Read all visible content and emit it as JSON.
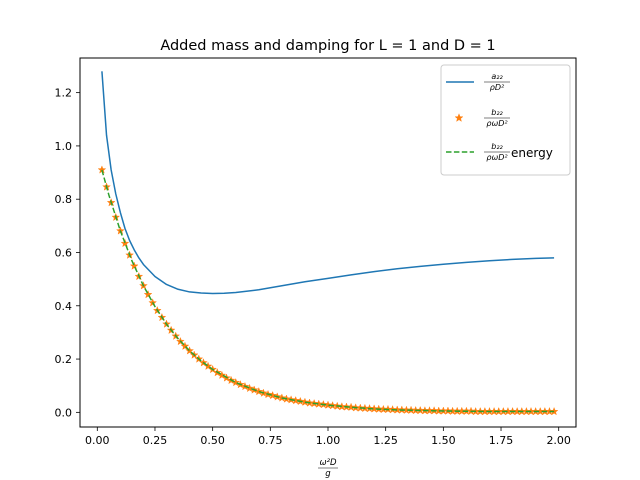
{
  "chart_data": {
    "type": "line",
    "title": "Added mass and damping for L = 1 and D = 1",
    "xlabel": {
      "num": "ω²D",
      "den": "g"
    },
    "ylabel": "",
    "xlim": [
      -0.075,
      2.075
    ],
    "ylim": [
      -0.055,
      1.33
    ],
    "grid": false,
    "legend_position": "top-right",
    "x_ticks": [
      0.0,
      0.25,
      0.5,
      0.75,
      1.0,
      1.25,
      1.5,
      1.75,
      2.0
    ],
    "x_tick_labels": [
      "0.00",
      "0.25",
      "0.50",
      "0.75",
      "1.00",
      "1.25",
      "1.50",
      "1.75",
      "2.00"
    ],
    "y_ticks": [
      0.0,
      0.2,
      0.4,
      0.6,
      0.8,
      1.0,
      1.2
    ],
    "y_tick_labels": [
      "0.0",
      "0.2",
      "0.4",
      "0.6",
      "0.8",
      "1.0",
      "1.2"
    ],
    "series": [
      {
        "name": "a22 / ρD²",
        "legend": {
          "num": "a₂₂",
          "den": "ρD²",
          "suffix": ""
        },
        "style": "solid",
        "color": "#1f77b4",
        "x": [
          0.02,
          0.04,
          0.06,
          0.08,
          0.1,
          0.12,
          0.14,
          0.16,
          0.18,
          0.2,
          0.25,
          0.3,
          0.35,
          0.4,
          0.45,
          0.5,
          0.55,
          0.6,
          0.7,
          0.8,
          0.9,
          1.0,
          1.1,
          1.2,
          1.3,
          1.4,
          1.5,
          1.6,
          1.7,
          1.8,
          1.9,
          1.98
        ],
        "y": [
          1.28,
          1.04,
          0.91,
          0.82,
          0.75,
          0.69,
          0.645,
          0.61,
          0.58,
          0.555,
          0.51,
          0.48,
          0.462,
          0.452,
          0.448,
          0.446,
          0.447,
          0.45,
          0.46,
          0.475,
          0.49,
          0.503,
          0.516,
          0.528,
          0.539,
          0.548,
          0.556,
          0.563,
          0.569,
          0.574,
          0.578,
          0.58
        ]
      },
      {
        "name": "b22 / ρωD²",
        "legend": {
          "num": "b₂₂",
          "den": "ρωD²",
          "suffix": ""
        },
        "style": "star-markers",
        "color": "#ff7f0e",
        "x": [
          0.02,
          0.04,
          0.06,
          0.08,
          0.1,
          0.12,
          0.14,
          0.16,
          0.18,
          0.2,
          0.22,
          0.24,
          0.26,
          0.28,
          0.3,
          0.32,
          0.34,
          0.36,
          0.38,
          0.4,
          0.42,
          0.44,
          0.46,
          0.48,
          0.5,
          0.52,
          0.54,
          0.56,
          0.58,
          0.6,
          0.62,
          0.64,
          0.66,
          0.68,
          0.7,
          0.72,
          0.74,
          0.76,
          0.78,
          0.8,
          0.82,
          0.84,
          0.86,
          0.88,
          0.9,
          0.92,
          0.94,
          0.96,
          0.98,
          1.0,
          1.02,
          1.04,
          1.06,
          1.08,
          1.1,
          1.12,
          1.14,
          1.16,
          1.18,
          1.2,
          1.22,
          1.24,
          1.26,
          1.28,
          1.3,
          1.32,
          1.34,
          1.36,
          1.38,
          1.4,
          1.42,
          1.44,
          1.46,
          1.48,
          1.5,
          1.52,
          1.54,
          1.56,
          1.58,
          1.6,
          1.62,
          1.64,
          1.66,
          1.68,
          1.7,
          1.72,
          1.74,
          1.76,
          1.78,
          1.8,
          1.82,
          1.84,
          1.86,
          1.88,
          1.9,
          1.92,
          1.94,
          1.96,
          1.98
        ],
        "y": [
          0.91,
          0.846,
          0.787,
          0.732,
          0.681,
          0.634,
          0.59,
          0.549,
          0.51,
          0.475,
          0.442,
          0.411,
          0.382,
          0.356,
          0.331,
          0.308,
          0.286,
          0.266,
          0.248,
          0.231,
          0.215,
          0.2,
          0.186,
          0.173,
          0.161,
          0.149,
          0.139,
          0.129,
          0.12,
          0.112,
          0.104,
          0.097,
          0.09,
          0.084,
          0.078,
          0.072,
          0.067,
          0.063,
          0.058,
          0.054,
          0.05,
          0.047,
          0.044,
          0.041,
          0.038,
          0.035,
          0.033,
          0.031,
          0.029,
          0.027,
          0.025,
          0.023,
          0.021,
          0.02,
          0.019,
          0.017,
          0.016,
          0.015,
          0.014,
          0.013,
          0.012,
          0.011,
          0.011,
          0.01,
          0.009,
          0.009,
          0.008,
          0.008,
          0.007,
          0.007,
          0.006,
          0.006,
          0.006,
          0.005,
          0.005,
          0.005,
          0.004,
          0.004,
          0.004,
          0.004,
          0.004,
          0.003,
          0.003,
          0.003,
          0.003,
          0.003,
          0.003,
          0.003,
          0.003,
          0.003,
          0.003,
          0.003,
          0.003,
          0.003,
          0.003,
          0.003,
          0.003,
          0.003,
          0.003
        ]
      },
      {
        "name": "b22 / ρωD² energy",
        "legend": {
          "num": "b₂₂",
          "den": "ρωD²",
          "suffix": "energy"
        },
        "style": "dashed",
        "color": "#2ca02c",
        "x": [
          0.02,
          0.05,
          0.1,
          0.15,
          0.2,
          0.25,
          0.3,
          0.35,
          0.4,
          0.45,
          0.5,
          0.6,
          0.7,
          0.8,
          0.9,
          1.0,
          1.1,
          1.2,
          1.3,
          1.4,
          1.5,
          1.6,
          1.7,
          1.8,
          1.9,
          1.98
        ],
        "y": [
          0.91,
          0.816,
          0.681,
          0.569,
          0.475,
          0.397,
          0.331,
          0.277,
          0.231,
          0.193,
          0.161,
          0.112,
          0.078,
          0.054,
          0.038,
          0.027,
          0.019,
          0.013,
          0.009,
          0.007,
          0.005,
          0.004,
          0.003,
          0.003,
          0.003,
          0.003
        ]
      }
    ]
  }
}
